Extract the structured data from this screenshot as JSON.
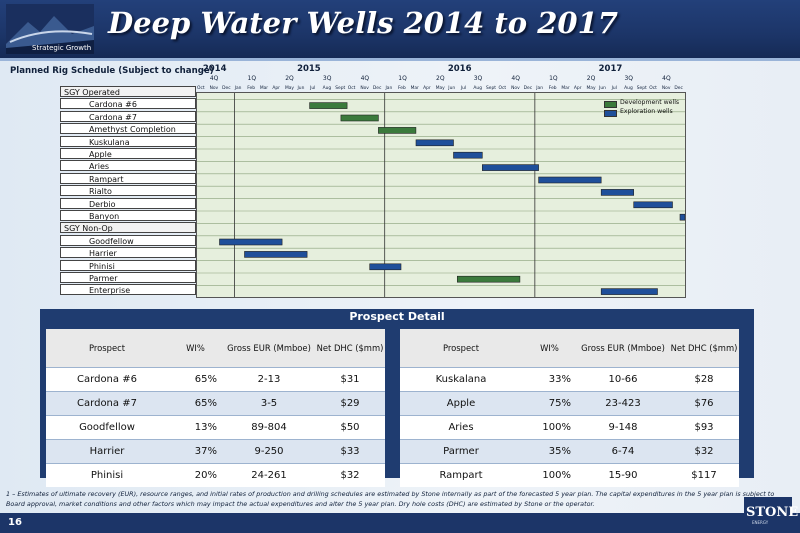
{
  "header": {
    "logo_text": "Strategic Growth",
    "title": "Deep Water Wells 2014 to 2017"
  },
  "schedule": {
    "title": "Planned Rig Schedule (Subject to change)",
    "years": [
      {
        "label": "2014",
        "start": 0,
        "end": 3
      },
      {
        "label": "2015",
        "start": 3,
        "end": 15
      },
      {
        "label": "2016",
        "start": 15,
        "end": 27
      },
      {
        "label": "2017",
        "start": 27,
        "end": 39
      }
    ],
    "quarters": [
      "4Q",
      "1Q",
      "2Q",
      "3Q",
      "4Q",
      "1Q",
      "2Q",
      "3Q",
      "4Q",
      "1Q",
      "2Q",
      "3Q",
      "4Q"
    ],
    "months": [
      "Oct",
      "Nov",
      "Dec",
      "Jan",
      "Feb",
      "Mar",
      "Apr",
      "May",
      "Jun",
      "Jul",
      "Aug",
      "Sept",
      "Oct",
      "Nov",
      "Dec",
      "Jan",
      "Feb",
      "Mar",
      "Apr",
      "May",
      "Jun",
      "Jul",
      "Aug",
      "Sept",
      "Oct",
      "Nov",
      "Dec",
      "Jan",
      "Feb",
      "Mar",
      "Apr",
      "May",
      "Jun",
      "Jul",
      "Aug",
      "Sept",
      "Oct",
      "Nov",
      "Dec"
    ],
    "legend": [
      {
        "label": "Development wells",
        "color": "#3b7a3c"
      },
      {
        "label": "Exploration wells",
        "color": "#1f4f9a"
      }
    ],
    "rows": [
      {
        "label": "SGY Operated",
        "group": true
      },
      {
        "label": "Cardona #6",
        "type": "dev",
        "start": 9,
        "end": 12
      },
      {
        "label": "Cardona #7",
        "type": "dev",
        "start": 11.5,
        "end": 14.5
      },
      {
        "label": "Amethyst Completion",
        "type": "dev",
        "start": 14.5,
        "end": 17.5
      },
      {
        "label": "Kuskulana",
        "type": "exp",
        "start": 17.5,
        "end": 20.5
      },
      {
        "label": "Apple",
        "type": "exp",
        "start": 20.5,
        "end": 22.8
      },
      {
        "label": "Aries",
        "type": "exp",
        "start": 22.8,
        "end": 27.3
      },
      {
        "label": "Rampart",
        "type": "exp",
        "start": 27.3,
        "end": 32.3
      },
      {
        "label": "Rialto",
        "type": "exp",
        "start": 32.3,
        "end": 34.9
      },
      {
        "label": "Derbio",
        "type": "exp",
        "start": 34.9,
        "end": 38
      },
      {
        "label": "Banyon",
        "type": "exp",
        "start": 38.6,
        "end": 39
      },
      {
        "label": "SGY Non-Op",
        "group": true
      },
      {
        "label": "Goodfellow",
        "type": "exp",
        "start": 1.8,
        "end": 6.8
      },
      {
        "label": "Harrier",
        "type": "exp",
        "start": 3.8,
        "end": 8.8
      },
      {
        "label": "Phinisi",
        "type": "exp",
        "start": 13.8,
        "end": 16.3
      },
      {
        "label": "Parmer",
        "type": "dev",
        "start": 20.8,
        "end": 25.8
      },
      {
        "label": "Enterprise",
        "type": "exp",
        "start": 32.3,
        "end": 36.8
      }
    ]
  },
  "prospect": {
    "title": "Prospect Detail",
    "headers": [
      "Prospect",
      "WI%",
      "Gross EUR (Mmboe)",
      "Net DHC ($mm)"
    ],
    "left": [
      [
        "Cardona #6",
        "65%",
        "2-13",
        "$31"
      ],
      [
        "Cardona #7",
        "65%",
        "3-5",
        "$29"
      ],
      [
        "Goodfellow",
        "13%",
        "89-804",
        "$50"
      ],
      [
        "Harrier",
        "37%",
        "9-250",
        "$33"
      ],
      [
        "Phinisi",
        "20%",
        "24-261",
        "$32"
      ]
    ],
    "right": [
      [
        "Kuskalana",
        "33%",
        "10-66",
        "$28"
      ],
      [
        "Apple",
        "75%",
        "23-423",
        "$76"
      ],
      [
        "Aries",
        "100%",
        "9-148",
        "$93"
      ],
      [
        "Parmer",
        "35%",
        "6-74",
        "$32"
      ],
      [
        "Rampart",
        "100%",
        "15-90",
        "$117"
      ]
    ]
  },
  "footnote": "1 – Estimates of ultimate recovery (EUR), resource ranges, and initial rates of production and drilling schedules are estimated by Stone internally as part of the forecasted 5 year plan. The capital expenditures in the 5 year plan is subject to Board approval, market conditions and other factors which may impact the actual expenditures and alter the 5 year plan. Dry hole costs (DHC) are estimated by Stone or the operator.",
  "footer": {
    "page_number": "16",
    "brand": "STONE",
    "brand_sub": "ENERGY"
  }
}
